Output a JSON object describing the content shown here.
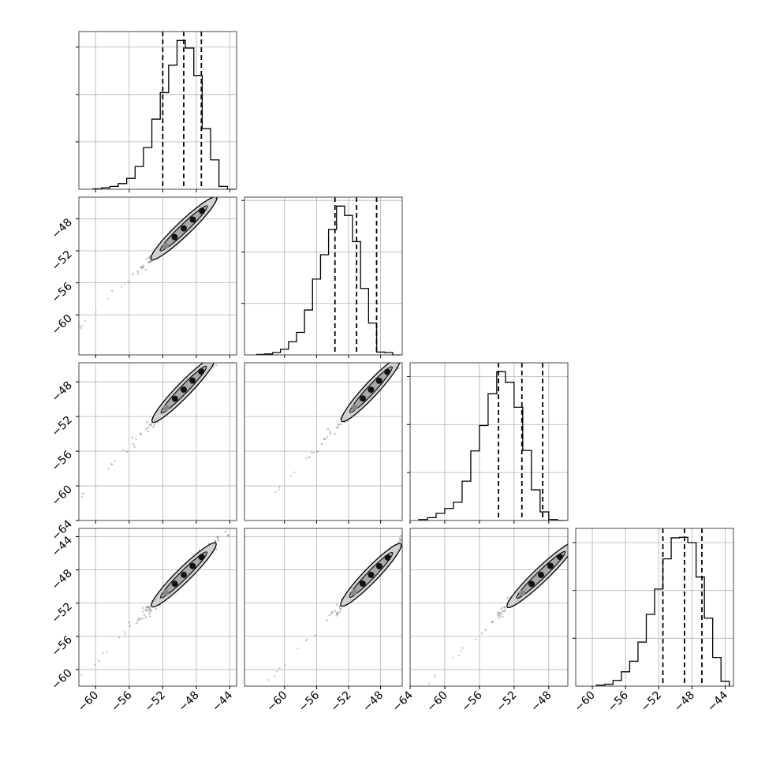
{
  "chart_data": {
    "type": "corner",
    "dimensions": 4,
    "grid": true,
    "colors": {
      "line": "#000000",
      "grid": "#b0b0b0",
      "scatter": "#555555",
      "contour_fill": "#d0d0d0"
    },
    "axis_ranges": [
      [
        -62,
        -43.2
      ],
      [
        -65,
        -45.3
      ],
      [
        -64,
        -45.8
      ],
      [
        -62,
        -43
      ]
    ],
    "x_tick_labels": [
      [
        "−60",
        "−56",
        "−52",
        "−48",
        "−44"
      ],
      [
        "−60",
        "−56",
        "−52",
        "−48"
      ],
      [
        "−64",
        "−60",
        "−56",
        "−52",
        "−48"
      ],
      [
        "−60",
        "−56",
        "−52",
        "−48",
        "−44"
      ]
    ],
    "y_tick_labels": [
      null,
      [
        "−48",
        "−52",
        "−56",
        "−60"
      ],
      [
        "−48",
        "−52",
        "−56",
        "−60",
        "−64"
      ],
      [
        "−44",
        "−48",
        "−52",
        "−56",
        "−60"
      ]
    ],
    "x_ticks": [
      [
        -60,
        -56,
        -52,
        -48,
        -44
      ],
      [
        -60,
        -56,
        -52,
        -48
      ],
      [
        -64,
        -60,
        -56,
        -52,
        -48
      ],
      [
        -60,
        -56,
        -52,
        -48,
        -44
      ]
    ],
    "y_ticks": [
      null,
      [
        -48,
        -52,
        -56,
        -60
      ],
      [
        -48,
        -52,
        -56,
        -60,
        -64
      ],
      [
        -44,
        -48,
        -52,
        -56,
        -60
      ]
    ],
    "histograms": [
      {
        "bin_edges": [
          -60.3,
          -59.3,
          -58.3,
          -57.3,
          -56.3,
          -55.3,
          -54.3,
          -53.3,
          -52.3,
          -51.3,
          -50.3,
          -49.3,
          -48.3,
          -47.3,
          -46.3,
          -45.3,
          -44.3,
          -43.3
        ],
        "counts": [
          1,
          3,
          6,
          12,
          23,
          48,
          88,
          148,
          204,
          262,
          314,
          298,
          240,
          128,
          62,
          6,
          0
        ],
        "quantiles": [
          -52,
          -49.5,
          -47.4
        ]
      },
      {
        "bin_edges": [
          -63.5,
          -62.5,
          -61.5,
          -60.5,
          -59.5,
          -58.5,
          -57.5,
          -56.5,
          -55.5,
          -54.5,
          -53.5,
          -52.5,
          -51.5,
          -50.5,
          -49.5,
          -48.5,
          -47.5,
          -46.5,
          -45.5
        ],
        "counts": [
          1,
          2,
          5,
          12,
          28,
          48,
          96,
          162,
          214,
          268,
          318,
          298,
          242,
          142,
          68,
          6,
          5,
          0
        ],
        "quantiles": [
          -53.7,
          -51,
          -48.5
        ]
      },
      {
        "bin_edges": [
          -63,
          -62,
          -61,
          -60,
          -59,
          -58,
          -57,
          -56,
          -55,
          -54,
          -53,
          -52,
          -51,
          -50,
          -49,
          -48,
          -47,
          -46
        ],
        "counts": [
          2,
          6,
          15,
          25,
          38,
          82,
          145,
          198,
          264,
          310,
          288,
          236,
          146,
          64,
          18,
          2,
          0
        ],
        "quantiles": [
          -53.8,
          -51.1,
          -48.7
        ]
      },
      {
        "bin_edges": [
          -59.5,
          -58.5,
          -57.5,
          -56.5,
          -55.5,
          -54.5,
          -53.5,
          -52.5,
          -51.5,
          -50.5,
          -49.5,
          -48.5,
          -47.5,
          -46.5,
          -45.5,
          -44.5,
          -43.5
        ],
        "counts": [
          2,
          4,
          12,
          30,
          52,
          92,
          150,
          203,
          266,
          310,
          311,
          300,
          228,
          142,
          60,
          10
        ],
        "quantiles": [
          -51.5,
          -48.9,
          -46.8
        ]
      }
    ],
    "scatter_params": {
      "mean": -49.5,
      "spread": 2.4,
      "tail_min": -62
    }
  }
}
